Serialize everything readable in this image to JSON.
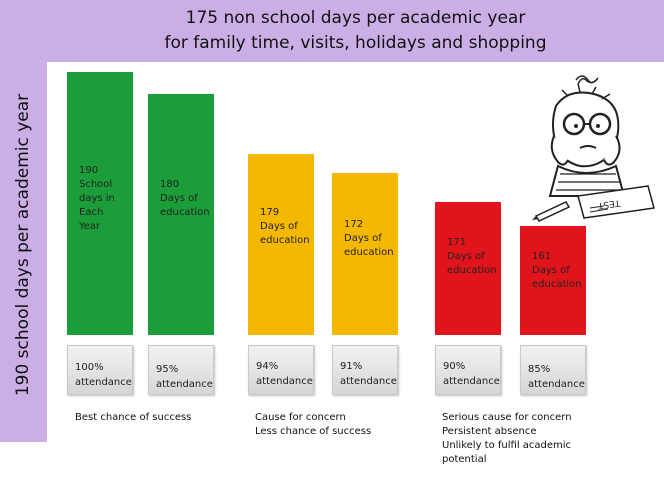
{
  "title_lines": [
    "175 non school days per academic  year",
    "for family time, visits, holidays and shopping"
  ],
  "ylabel": "190 school days per academic year",
  "chart_data": {
    "type": "bar",
    "title": "175 non school days per academic  year\nfor family time, visits, holidays and shopping",
    "ylabel": "190 school days per academic year",
    "categories": [
      "100% attendance",
      "95% attendance",
      "94% attendance",
      "91% attendance",
      "90% attendance",
      "85% attendance"
    ],
    "values": [
      190,
      180,
      179,
      172,
      171,
      161
    ],
    "bar_labels": [
      "190\nSchool\ndays in\nEach\nYear",
      "180\nDays of\neducation",
      "179\nDays of\neducation",
      "172\nDays of\neducation",
      "171\nDays of\neducation",
      "161\nDays of\neducation"
    ],
    "attendance_labels": [
      "100%\nattendance",
      "95%\nattendance",
      "94%\nattendance",
      "91%\nattendance",
      "90%\nattendance",
      "85%\nattendance"
    ],
    "colors": [
      "#1b9e3a",
      "#1b9e3a",
      "#f5b800",
      "#f5b800",
      "#e2141b",
      "#e2141b"
    ],
    "groups": [
      "Best chance of success",
      "Cause for concern\nLess chance of success",
      "Serious cause for concern\nPersistent absence\nUnlikely to fulfil academic\npotential"
    ],
    "grid": false,
    "legend": "none"
  },
  "icons": [
    "student-taking-test-cartoon"
  ]
}
